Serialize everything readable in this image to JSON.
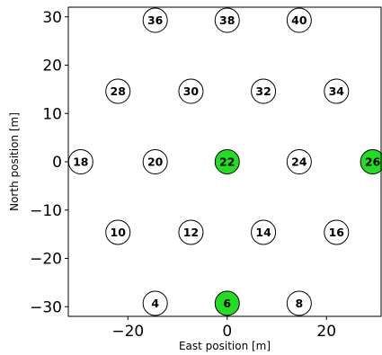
{
  "chart_data": {
    "type": "scatter",
    "title": "",
    "xlabel": "East position [m]",
    "ylabel": "North position [m]",
    "xlim": [
      -32,
      31
    ],
    "ylim": [
      -32,
      32
    ],
    "xticks": [
      -20,
      0,
      20
    ],
    "xtick_labels": [
      "−20",
      "0",
      "20"
    ],
    "yticks": [
      -30,
      -20,
      -10,
      0,
      10,
      20,
      30
    ],
    "ytick_labels": [
      "−30",
      "−20",
      "−10",
      "0",
      "10",
      "20",
      "30"
    ],
    "grid": false,
    "colors": {
      "highlight": "#22dd22",
      "default": "#ffffff",
      "edge": "#000000"
    },
    "points": [
      {
        "label": "36",
        "x": -14.5,
        "y": 29.3,
        "highlight": false
      },
      {
        "label": "38",
        "x": 0,
        "y": 29.3,
        "highlight": false
      },
      {
        "label": "40",
        "x": 14.5,
        "y": 29.3,
        "highlight": false
      },
      {
        "label": "28",
        "x": -22,
        "y": 14.6,
        "highlight": false
      },
      {
        "label": "30",
        "x": -7.3,
        "y": 14.6,
        "highlight": false
      },
      {
        "label": "32",
        "x": 7.3,
        "y": 14.6,
        "highlight": false
      },
      {
        "label": "34",
        "x": 22,
        "y": 14.6,
        "highlight": false
      },
      {
        "label": "18",
        "x": -29.5,
        "y": 0,
        "highlight": false
      },
      {
        "label": "20",
        "x": -14.5,
        "y": 0,
        "highlight": false
      },
      {
        "label": "22",
        "x": 0,
        "y": 0,
        "highlight": true
      },
      {
        "label": "24",
        "x": 14.5,
        "y": 0,
        "highlight": false
      },
      {
        "label": "26",
        "x": 29.3,
        "y": 0,
        "highlight": true
      },
      {
        "label": "10",
        "x": -22,
        "y": -14.6,
        "highlight": false
      },
      {
        "label": "12",
        "x": -7.3,
        "y": -14.6,
        "highlight": false
      },
      {
        "label": "14",
        "x": 7.3,
        "y": -14.6,
        "highlight": false
      },
      {
        "label": "16",
        "x": 22,
        "y": -14.6,
        "highlight": false
      },
      {
        "label": "4",
        "x": -14.5,
        "y": -29.3,
        "highlight": false
      },
      {
        "label": "6",
        "x": 0,
        "y": -29.3,
        "highlight": true
      },
      {
        "label": "8",
        "x": 14.5,
        "y": -29.3,
        "highlight": false
      }
    ]
  }
}
